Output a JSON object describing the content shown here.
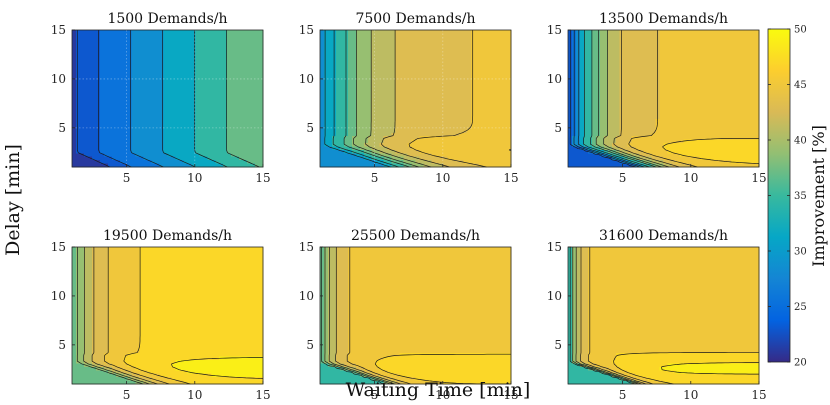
{
  "chart_data": {
    "type": "contour",
    "xlabel": "Waiting Time [min]",
    "ylabel": "Delay [min]",
    "colorbar_label": "Improvement [%]",
    "xlim": [
      1,
      15
    ],
    "ylim": [
      1,
      15
    ],
    "x_ticks": [
      5,
      10,
      15
    ],
    "y_ticks": [
      5,
      10,
      15
    ],
    "colorbar_range": [
      20,
      50
    ],
    "colorbar_ticks": [
      20,
      25,
      30,
      35,
      40,
      45,
      50
    ],
    "colormap": "parula",
    "contour_levels": [
      20,
      22,
      24,
      27,
      30,
      33,
      36,
      38,
      40,
      42,
      44,
      46,
      48
    ],
    "panels": [
      {
        "title": "1500 Demands/h",
        "base_fn": "linear",
        "a": 21.5,
        "b": 1.28,
        "max": 37,
        "sat": 0,
        "hot": 0,
        "grid": true
      },
      {
        "title": "7500 Demands/h",
        "base_fn": "plateau",
        "a": 28,
        "b": 17,
        "k": 0.36,
        "sat": 0.7,
        "hot": 1.2,
        "grid": true
      },
      {
        "title": "13500 Demands/h",
        "base_fn": "plateau",
        "a": 22,
        "b": 23.6,
        "k": 0.55,
        "sat": 1.0,
        "hot": 1.5,
        "grid": false
      },
      {
        "title": "19500 Demands/h",
        "base_fn": "plateau",
        "a": 36,
        "b": 11.5,
        "k": 0.5,
        "sat": 0.6,
        "hot": 1.2,
        "grid": false
      },
      {
        "title": "25500 Demands/h",
        "base_fn": "plateau",
        "a": 35,
        "b": 10.6,
        "k": 0.95,
        "sat": 0.4,
        "hot": 2.4,
        "grid": false
      },
      {
        "title": "31600 Demands/h",
        "base_fn": "plateau",
        "a": 34,
        "b": 12,
        "k": 1.2,
        "sat": 0.4,
        "hot": 2.6,
        "grid": false
      }
    ]
  }
}
